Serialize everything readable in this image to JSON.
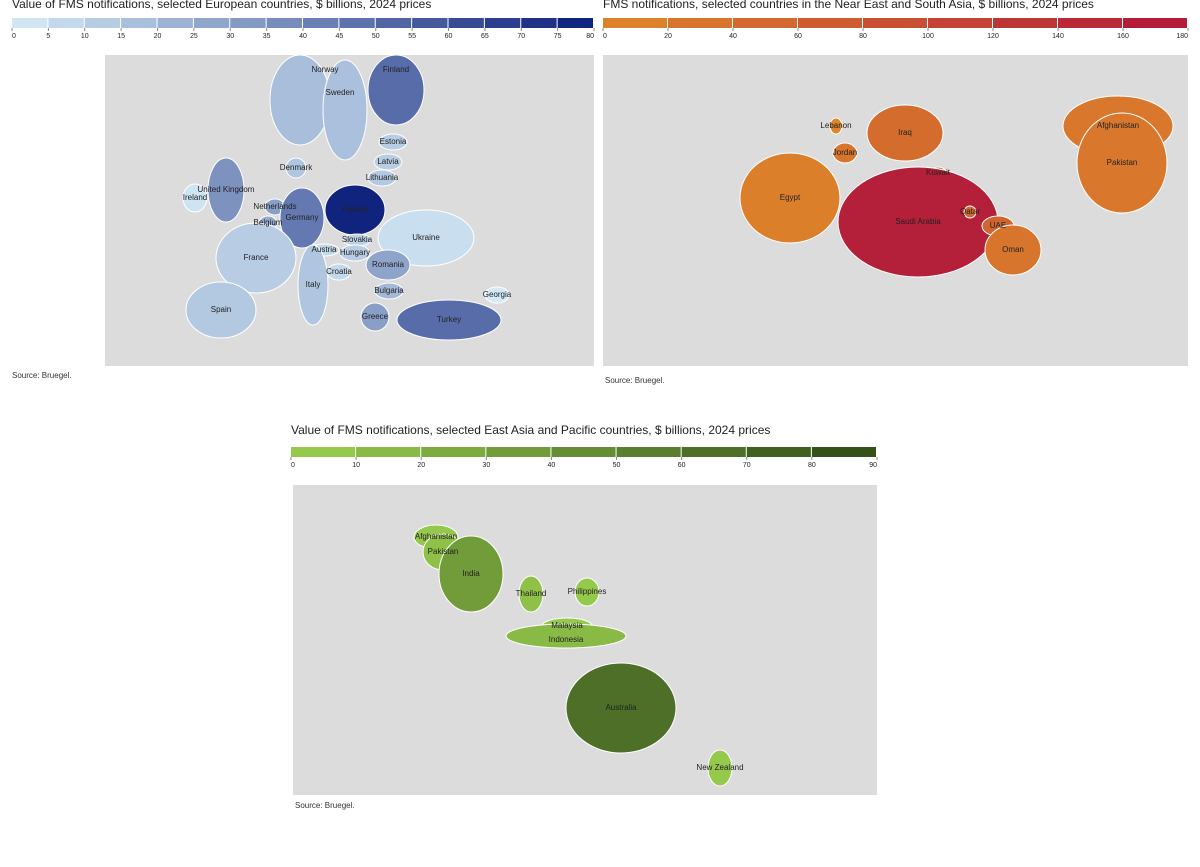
{
  "maps": [
    {
      "title": "Value of FMS notifications, selected European countries, $ billions, 2024 prices",
      "scale": {
        "ticks": [
          0,
          5,
          10,
          15,
          20,
          25,
          30,
          35,
          40,
          45,
          50,
          55,
          60,
          65,
          70,
          75,
          80
        ],
        "colors": [
          "#d6ecf7",
          "#0c1f7a"
        ]
      },
      "regions": [
        {
          "name": "Norway",
          "value": 18
        },
        {
          "name": "Sweden",
          "value": 17
        },
        {
          "name": "Finland",
          "value": 50
        },
        {
          "name": "Estonia",
          "value": 12
        },
        {
          "name": "Latvia",
          "value": 12
        },
        {
          "name": "Lithuania",
          "value": 14
        },
        {
          "name": "Denmark",
          "value": 15
        },
        {
          "name": "Poland",
          "value": 78
        },
        {
          "name": "United Kingdom",
          "value": 35
        },
        {
          "name": "Ireland",
          "value": 3
        },
        {
          "name": "Netherlands",
          "value": 30
        },
        {
          "name": "Belgium",
          "value": 25
        },
        {
          "name": "Germany",
          "value": 45
        },
        {
          "name": "Slovakia",
          "value": 10
        },
        {
          "name": "Ukraine",
          "value": 5
        },
        {
          "name": "France",
          "value": 12
        },
        {
          "name": "Austria",
          "value": 8
        },
        {
          "name": "Hungary",
          "value": 12
        },
        {
          "name": "Romania",
          "value": 28
        },
        {
          "name": "Croatia",
          "value": 8
        },
        {
          "name": "Italy",
          "value": 15
        },
        {
          "name": "Bulgaria",
          "value": 20
        },
        {
          "name": "Georgia",
          "value": 1
        },
        {
          "name": "Spain",
          "value": 14
        },
        {
          "name": "Greece",
          "value": 30
        },
        {
          "name": "Turkey",
          "value": 50
        }
      ],
      "source": "Source: Bruegel."
    },
    {
      "title": "FMS notifications, selected countries in the Near East and South Asia, $ billions, 2024 prices",
      "scale": {
        "ticks": [
          0,
          20,
          40,
          60,
          80,
          100,
          120,
          140,
          160,
          180
        ],
        "colors": [
          "#e0882a",
          "#b0173a"
        ]
      },
      "regions": [
        {
          "name": "Egypt",
          "value": 15
        },
        {
          "name": "Lebanon",
          "value": 5
        },
        {
          "name": "Jordan",
          "value": 30
        },
        {
          "name": "Iraq",
          "value": 45
        },
        {
          "name": "Kuwait",
          "value": 40
        },
        {
          "name": "Saudi Arabia",
          "value": 165
        },
        {
          "name": "Qatar",
          "value": 50
        },
        {
          "name": "UAE",
          "value": 55
        },
        {
          "name": "Oman",
          "value": 30
        },
        {
          "name": "Afghanistan",
          "value": 25
        },
        {
          "name": "Pakistan",
          "value": 25
        }
      ],
      "source": "Source: Bruegel."
    },
    {
      "title": "Value of FMS notifications, selected East Asia and Pacific countries, $ billions, 2024 prices",
      "scale": {
        "ticks": [
          0,
          10,
          20,
          30,
          40,
          50,
          60,
          70,
          80,
          90
        ],
        "colors": [
          "#9bd04f",
          "#2f4a17"
        ]
      },
      "regions": [
        {
          "name": "Afghanistan",
          "value": 5
        },
        {
          "name": "Pakistan",
          "value": 10
        },
        {
          "name": "India",
          "value": 35
        },
        {
          "name": "Thailand",
          "value": 10
        },
        {
          "name": "Philippines",
          "value": 5
        },
        {
          "name": "Malaysia",
          "value": 5
        },
        {
          "name": "Indonesia",
          "value": 15
        },
        {
          "name": "Australia",
          "value": 65
        },
        {
          "name": "New Zealand",
          "value": 5
        }
      ],
      "source": "Source: Bruegel."
    }
  ]
}
